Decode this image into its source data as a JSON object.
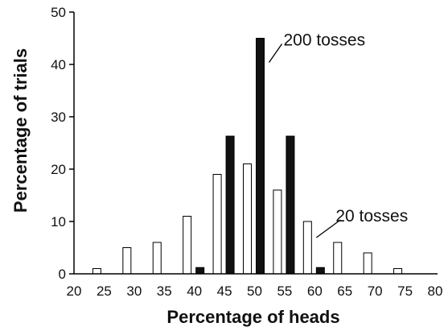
{
  "chart_data": {
    "type": "bar",
    "title": "",
    "xlabel": "Percentage of heads",
    "ylabel": "Percentage of trials",
    "xlim": [
      20,
      80
    ],
    "ylim": [
      0,
      50
    ],
    "x_ticks": [
      "20",
      "25",
      "30",
      "35",
      "40",
      "45",
      "50",
      "55",
      "60",
      "65",
      "70",
      "75",
      "80"
    ],
    "y_ticks": [
      "0",
      "10",
      "20",
      "30",
      "40",
      "50"
    ],
    "grid": false,
    "series": [
      {
        "name": "20 tosses",
        "fill": "#ffffff",
        "stroke": "#000000",
        "x": [
          25,
          30,
          35,
          40,
          45,
          50,
          55,
          60,
          65,
          70,
          75
        ],
        "values": [
          1,
          5,
          6,
          11,
          19,
          21,
          16,
          10,
          6,
          4,
          1
        ]
      },
      {
        "name": "200 tosses",
        "fill": "#111111",
        "stroke": "#000000",
        "x": [
          40,
          45,
          50,
          55,
          60
        ],
        "values": [
          1.2,
          26.3,
          45,
          26.3,
          1.2
        ]
      }
    ],
    "annotations": [
      {
        "text": "200 tosses",
        "series": "200 tosses",
        "x": 50,
        "y": 45
      },
      {
        "text": "20 tosses",
        "series": "20 tosses",
        "x": 60,
        "y": 10
      }
    ]
  }
}
